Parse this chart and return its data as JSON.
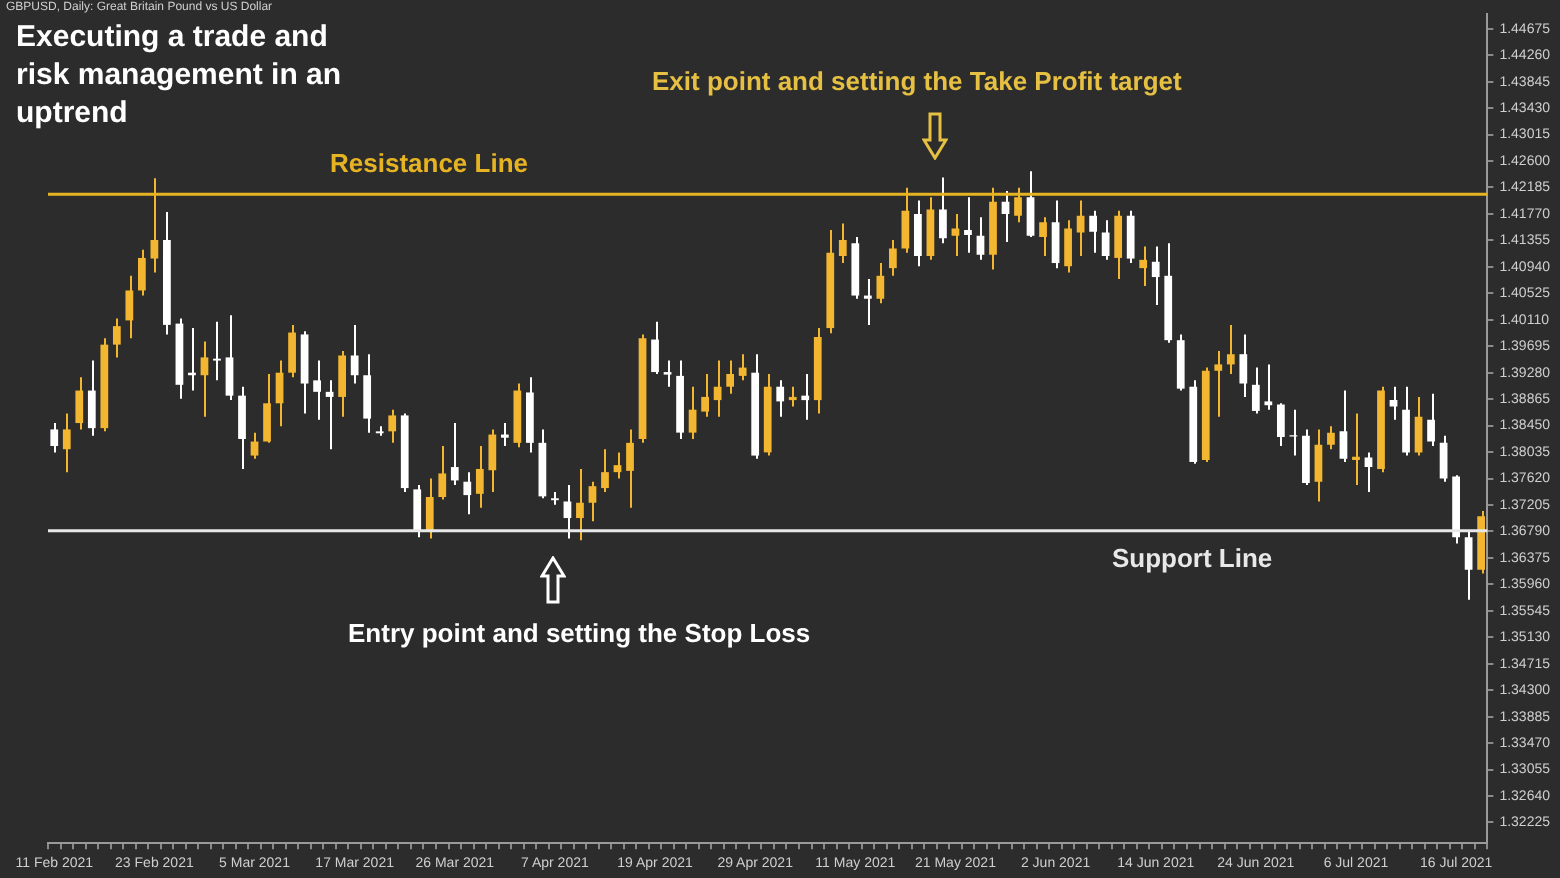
{
  "chart_data": {
    "type": "candlestick",
    "title": "Executing a trade and risk management in an uptrend",
    "subtitle": "GBPUSD, Daily: Great Britain Pound vs US Dollar",
    "annotations": [
      "Exit point and setting the Take Profit target",
      "Entry point and setting the Stop Loss"
    ],
    "categories": [
      "11 Feb 2021",
      null,
      null,
      null,
      null,
      null,
      null,
      null,
      "23 Feb 2021",
      null,
      null,
      null,
      null,
      null,
      null,
      null,
      "5 Mar 2021",
      null,
      null,
      null,
      null,
      null,
      null,
      null,
      "17 Mar 2021",
      null,
      null,
      null,
      null,
      null,
      null,
      null,
      "26 Mar 2021",
      null,
      null,
      null,
      null,
      null,
      null,
      null,
      "7 Apr 2021",
      null,
      null,
      null,
      null,
      null,
      null,
      null,
      "19 Apr 2021",
      null,
      null,
      null,
      null,
      null,
      null,
      null,
      "29 Apr 2021",
      null,
      null,
      null,
      null,
      null,
      null,
      null,
      "11 May 2021",
      null,
      null,
      null,
      null,
      null,
      null,
      null,
      "21 May 2021",
      null,
      null,
      null,
      null,
      null,
      null,
      null,
      "2 Jun 2021",
      null,
      null,
      null,
      null,
      null,
      null,
      null,
      "14 Jun 2021",
      null,
      null,
      null,
      null,
      null,
      null,
      null,
      "24 Jun 2021",
      null,
      null,
      null,
      null,
      null,
      null,
      null,
      "6 Jul 2021",
      null,
      null,
      null,
      null,
      null,
      null,
      null,
      "16 Jul 2021",
      null,
      null
    ],
    "ohlc": [
      [
        1.3839,
        1.3849,
        1.3803,
        1.3813
      ],
      [
        1.3808,
        1.3864,
        1.3772,
        1.3839
      ],
      [
        1.3849,
        1.3921,
        1.3839,
        1.39
      ],
      [
        1.39,
        1.3947,
        1.3829,
        1.3841
      ],
      [
        1.3841,
        1.3982,
        1.3836,
        1.3972
      ],
      [
        1.3972,
        1.4013,
        1.3952,
        1.4001
      ],
      [
        1.401,
        1.408,
        1.3982,
        1.4057
      ],
      [
        1.4057,
        1.4121,
        1.4049,
        1.4108
      ],
      [
        1.4107,
        1.4233,
        1.4085,
        1.4136
      ],
      [
        1.4136,
        1.418,
        1.3988,
        1.4003
      ],
      [
        1.4005,
        1.4013,
        1.3887,
        1.3909
      ],
      [
        1.3928,
        1.3998,
        1.39,
        1.3924
      ],
      [
        1.3924,
        1.3977,
        1.3859,
        1.3952
      ],
      [
        1.395,
        1.4008,
        1.3916,
        1.3947
      ],
      [
        1.3952,
        1.4018,
        1.3885,
        1.3892
      ],
      [
        1.3892,
        1.3906,
        1.3777,
        1.3824
      ],
      [
        1.3798,
        1.3834,
        1.3793,
        1.382
      ],
      [
        1.382,
        1.3926,
        1.3818,
        1.388
      ],
      [
        1.388,
        1.3947,
        1.3844,
        1.3928
      ],
      [
        1.3928,
        1.4003,
        1.3921,
        1.3991
      ],
      [
        1.3988,
        1.3993,
        1.3864,
        1.3911
      ],
      [
        1.3916,
        1.3947,
        1.3854,
        1.3898
      ],
      [
        1.3898,
        1.3916,
        1.3808,
        1.389
      ],
      [
        1.389,
        1.3962,
        1.3859,
        1.3955
      ],
      [
        1.3955,
        1.4003,
        1.3911,
        1.3924
      ],
      [
        1.3924,
        1.3957,
        1.3834,
        1.3856
      ],
      [
        1.3836,
        1.3844,
        1.3829,
        1.3833
      ],
      [
        1.3836,
        1.387,
        1.3818,
        1.3861
      ],
      [
        1.3861,
        1.3864,
        1.3741,
        1.3747
      ],
      [
        1.3745,
        1.3752,
        1.367,
        1.368
      ],
      [
        1.368,
        1.3762,
        1.3668,
        1.3733
      ],
      [
        1.3733,
        1.3813,
        1.3729,
        1.377
      ],
      [
        1.378,
        1.3849,
        1.3752,
        1.3759
      ],
      [
        1.3757,
        1.3772,
        1.3706,
        1.3736
      ],
      [
        1.3738,
        1.3813,
        1.3716,
        1.3777
      ],
      [
        1.3775,
        1.3839,
        1.3741,
        1.3831
      ],
      [
        1.3831,
        1.3849,
        1.3813,
        1.3826
      ],
      [
        1.3818,
        1.3911,
        1.3811,
        1.39
      ],
      [
        1.3897,
        1.3921,
        1.3803,
        1.3818
      ],
      [
        1.3818,
        1.3839,
        1.3731,
        1.3734
      ],
      [
        1.3731,
        1.3741,
        1.3721,
        1.3728
      ],
      [
        1.3726,
        1.3752,
        1.3668,
        1.37
      ],
      [
        1.37,
        1.3777,
        1.3665,
        1.3724
      ],
      [
        1.3724,
        1.3757,
        1.3695,
        1.375
      ],
      [
        1.3747,
        1.3808,
        1.3741,
        1.3772
      ],
      [
        1.3772,
        1.3803,
        1.3762,
        1.3783
      ],
      [
        1.3774,
        1.3839,
        1.3716,
        1.3818
      ],
      [
        1.3824,
        1.3988,
        1.3818,
        1.3982
      ],
      [
        1.398,
        1.4008,
        1.3926,
        1.3929
      ],
      [
        1.3929,
        1.3947,
        1.3906,
        1.3925
      ],
      [
        1.3923,
        1.3947,
        1.3824,
        1.3834
      ],
      [
        1.3834,
        1.3906,
        1.3824,
        1.387
      ],
      [
        1.3867,
        1.3926,
        1.3859,
        1.389
      ],
      [
        1.3885,
        1.3947,
        1.3859,
        1.3906
      ],
      [
        1.3906,
        1.3947,
        1.3895,
        1.3926
      ],
      [
        1.3923,
        1.3957,
        1.3916,
        1.3936
      ],
      [
        1.3928,
        1.3957,
        1.3793,
        1.3798
      ],
      [
        1.3803,
        1.3926,
        1.3798,
        1.3906
      ],
      [
        1.3906,
        1.3916,
        1.3859,
        1.3883
      ],
      [
        1.3885,
        1.3906,
        1.3875,
        1.389
      ],
      [
        1.3892,
        1.3926,
        1.3854,
        1.3885
      ],
      [
        1.3885,
        1.3998,
        1.3864,
        1.3984
      ],
      [
        1.3998,
        1.4152,
        1.399,
        1.4116
      ],
      [
        1.4111,
        1.4162,
        1.41,
        1.4136
      ],
      [
        1.4131,
        1.4141,
        1.4044,
        1.4049
      ],
      [
        1.4049,
        1.4075,
        1.4003,
        1.4044
      ],
      [
        1.4044,
        1.41,
        1.4037,
        1.408
      ],
      [
        1.4092,
        1.4136,
        1.408,
        1.4123
      ],
      [
        1.4123,
        1.4218,
        1.4116,
        1.4182
      ],
      [
        1.4177,
        1.4198,
        1.4095,
        1.4111
      ],
      [
        1.4111,
        1.4203,
        1.4105,
        1.4184
      ],
      [
        1.4184,
        1.4234,
        1.4131,
        1.4139
      ],
      [
        1.4143,
        1.4177,
        1.4111,
        1.4154
      ],
      [
        1.4152,
        1.4203,
        1.4116,
        1.4144
      ],
      [
        1.4143,
        1.4172,
        1.4105,
        1.4113
      ],
      [
        1.4113,
        1.4218,
        1.409,
        1.4196
      ],
      [
        1.4196,
        1.4213,
        1.4133,
        1.4177
      ],
      [
        1.4174,
        1.4218,
        1.4164,
        1.4203
      ],
      [
        1.4203,
        1.4244,
        1.4141,
        1.4143
      ],
      [
        1.4141,
        1.4172,
        1.4111,
        1.4164
      ],
      [
        1.4164,
        1.4198,
        1.4092,
        1.41
      ],
      [
        1.4095,
        1.4167,
        1.4085,
        1.4154
      ],
      [
        1.4148,
        1.4198,
        1.4111,
        1.4174
      ],
      [
        1.4174,
        1.4182,
        1.4116,
        1.4149
      ],
      [
        1.4148,
        1.4167,
        1.4105,
        1.4111
      ],
      [
        1.4108,
        1.4182,
        1.4075,
        1.4174
      ],
      [
        1.4174,
        1.4182,
        1.41,
        1.4107
      ],
      [
        1.4092,
        1.4126,
        1.4064,
        1.4105
      ],
      [
        1.4102,
        1.4126,
        1.4034,
        1.4078
      ],
      [
        1.408,
        1.4131,
        1.3975,
        1.3979
      ],
      [
        1.3979,
        1.3988,
        1.39,
        1.3903
      ],
      [
        1.3906,
        1.3916,
        1.3785,
        1.3788
      ],
      [
        1.3791,
        1.3936,
        1.3788,
        1.3931
      ],
      [
        1.3931,
        1.3962,
        1.3859,
        1.3941
      ],
      [
        1.3941,
        1.4003,
        1.3926,
        1.3957
      ],
      [
        1.3957,
        1.3988,
        1.389,
        1.3911
      ],
      [
        1.3909,
        1.3936,
        1.3864,
        1.3868
      ],
      [
        1.3883,
        1.3941,
        1.387,
        1.3877
      ],
      [
        1.3878,
        1.388,
        1.3813,
        1.3827
      ],
      [
        1.383,
        1.387,
        1.3798,
        1.3828
      ],
      [
        1.3829,
        1.3839,
        1.3752,
        1.3755
      ],
      [
        1.3757,
        1.3839,
        1.3726,
        1.3815
      ],
      [
        1.3815,
        1.3844,
        1.3808,
        1.3834
      ],
      [
        1.3836,
        1.39,
        1.3788,
        1.3793
      ],
      [
        1.3791,
        1.3864,
        1.3752,
        1.3796
      ],
      [
        1.3795,
        1.3803,
        1.3741,
        1.378
      ],
      [
        1.3777,
        1.3906,
        1.3772,
        1.39
      ],
      [
        1.3885,
        1.3906,
        1.3854,
        1.3875
      ],
      [
        1.387,
        1.3906,
        1.3798,
        1.3803
      ],
      [
        1.3803,
        1.389,
        1.3798,
        1.3859
      ],
      [
        1.3854,
        1.3895,
        1.3813,
        1.382
      ],
      [
        1.3818,
        1.3829,
        1.3757,
        1.3762
      ],
      [
        1.3765,
        1.3767,
        1.366,
        1.367
      ],
      [
        1.367,
        1.368,
        1.3572,
        1.3619
      ],
      [
        1.3619,
        1.3711,
        1.3613,
        1.3703
      ]
    ],
    "colors": [
      "#ffffff",
      "#f2b630",
      "#f2b630",
      "#ffffff",
      "#f2b630",
      "#f2b630",
      "#f2b630",
      "#f2b630",
      "#f2b630",
      "#ffffff",
      "#ffffff",
      "#ffffff",
      "#f2b630",
      "#ffffff",
      "#ffffff",
      "#ffffff",
      "#f2b630",
      "#f2b630",
      "#f2b630",
      "#f2b630",
      "#ffffff",
      "#ffffff",
      "#ffffff",
      "#f2b630",
      "#ffffff",
      "#ffffff",
      "#ffffff",
      "#f2b630",
      "#ffffff",
      "#ffffff",
      "#f2b630",
      "#f2b630",
      "#ffffff",
      "#ffffff",
      "#f2b630",
      "#f2b630",
      "#ffffff",
      "#f2b630",
      "#ffffff",
      "#ffffff",
      "#ffffff",
      "#ffffff",
      "#f2b630",
      "#f2b630",
      "#f2b630",
      "#f2b630",
      "#f2b630",
      "#f2b630",
      "#ffffff",
      "#ffffff",
      "#ffffff",
      "#f2b630",
      "#f2b630",
      "#f2b630",
      "#f2b630",
      "#f2b630",
      "#ffffff",
      "#f2b630",
      "#ffffff",
      "#f2b630",
      "#ffffff",
      "#f2b630",
      "#f2b630",
      "#f2b630",
      "#ffffff",
      "#ffffff",
      "#f2b630",
      "#f2b630",
      "#f2b630",
      "#ffffff",
      "#f2b630",
      "#ffffff",
      "#f2b630",
      "#ffffff",
      "#ffffff",
      "#f2b630",
      "#ffffff",
      "#f2b630",
      "#ffffff",
      "#f2b630",
      "#ffffff",
      "#f2b630",
      "#f2b630",
      "#ffffff",
      "#ffffff",
      "#f2b630",
      "#ffffff",
      "#f2b630",
      "#ffffff",
      "#ffffff",
      "#ffffff",
      "#ffffff",
      "#f2b630",
      "#f2b630",
      "#f2b630",
      "#ffffff",
      "#ffffff",
      "#ffffff",
      "#ffffff",
      "#ffffff",
      "#ffffff",
      "#f2b630",
      "#f2b630",
      "#ffffff",
      "#f2b630",
      "#ffffff",
      "#f2b630",
      "#ffffff",
      "#ffffff",
      "#f2b630",
      "#ffffff",
      "#ffffff",
      "#ffffff",
      "#ffffff",
      "#f2b630"
    ],
    "ylim": [
      1.319,
      1.449
    ],
    "yticks": [
      1.44675,
      {
        "value": 1.4426,
        "label": "1.44260"
      },
      1.43845,
      {
        "value": 1.4343,
        "label": "1.43430"
      },
      1.43015,
      {
        "value": 1.426,
        "label": "1.42600"
      },
      1.42185,
      {
        "value": 1.4177,
        "label": "1.41770"
      },
      1.41355,
      {
        "value": 1.4094,
        "label": "1.40940"
      },
      1.40525,
      {
        "value": 1.4011,
        "label": "1.40110"
      },
      1.39695,
      {
        "value": 1.3928,
        "label": "1.39280"
      },
      1.38865,
      {
        "value": 1.3845,
        "label": "1.38450"
      },
      1.38035,
      {
        "value": 1.3762,
        "label": "1.37620"
      },
      1.37205,
      {
        "value": 1.3679,
        "label": "1.36790"
      },
      1.36375,
      {
        "value": 1.3596,
        "label": "1.35960"
      },
      1.35545,
      {
        "value": 1.3513,
        "label": "1.35130"
      },
      1.34715,
      {
        "value": 1.343,
        "label": "1.34300"
      },
      1.33885,
      {
        "value": 1.3347,
        "label": "1.33470"
      },
      1.33055,
      {
        "value": 1.3264,
        "label": "1.32640"
      },
      1.32225
    ],
    "ref_lines": [
      {
        "axis": "y",
        "value": 1.4208,
        "label": "Resistance Line",
        "color": "#e6b422"
      },
      {
        "axis": "y",
        "value": 1.368,
        "label": "Support Line",
        "color": "#e8e8e8"
      }
    ],
    "legend": false
  }
}
